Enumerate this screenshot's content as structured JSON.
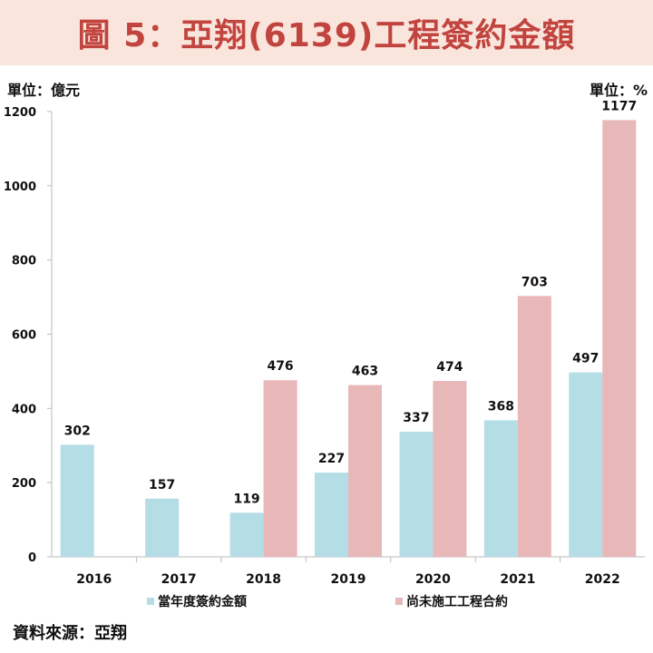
{
  "title": "圖 5：亞翔(6139)工程簽約金額",
  "unit_left": "單位：億元",
  "unit_right": "單位：%",
  "source": "資料來源：亞翔",
  "colors": {
    "title_bg": "#fae5dc",
    "title_text": "#c1443f",
    "series1": "#b5dde6",
    "series2": "#e8b7b8"
  },
  "chart_data": {
    "type": "bar",
    "categories": [
      "2016",
      "2017",
      "2018",
      "2019",
      "2020",
      "2021",
      "2022"
    ],
    "series": [
      {
        "name": "當年度簽約金額",
        "values": [
          302,
          157,
          119,
          227,
          337,
          368,
          497
        ]
      },
      {
        "name": "尚未施工工程合約",
        "values": [
          null,
          null,
          476,
          463,
          474,
          703,
          1177
        ]
      }
    ],
    "ylim": [
      0,
      1200
    ],
    "yticks": [
      0,
      200,
      400,
      600,
      800,
      1000,
      1200
    ],
    "legend": "bottom",
    "grid": false
  }
}
